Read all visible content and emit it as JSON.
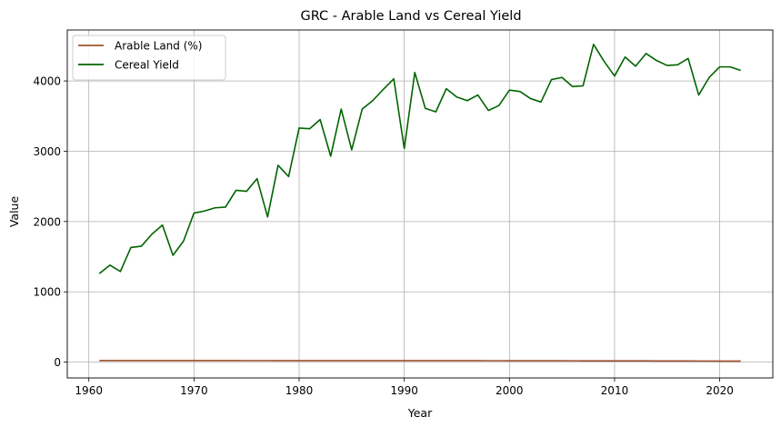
{
  "chart_data": {
    "type": "line",
    "title": "GRC - Arable Land vs Cereal Yield",
    "xlabel": "Year",
    "ylabel": "Value",
    "xlim": [
      1957.95,
      2025.05
    ],
    "ylim": [
      -225,
      4725
    ],
    "xticks": [
      1960,
      1970,
      1980,
      1990,
      2000,
      2010,
      2020
    ],
    "yticks": [
      0,
      1000,
      2000,
      3000,
      4000
    ],
    "grid": true,
    "legend_position": "top-left",
    "x": [
      1961,
      1962,
      1963,
      1964,
      1965,
      1966,
      1967,
      1968,
      1969,
      1970,
      1971,
      1972,
      1973,
      1974,
      1975,
      1976,
      1977,
      1978,
      1979,
      1980,
      1981,
      1982,
      1983,
      1984,
      1985,
      1986,
      1987,
      1988,
      1989,
      1990,
      1991,
      1992,
      1993,
      1994,
      1995,
      1996,
      1997,
      1998,
      1999,
      2000,
      2001,
      2002,
      2003,
      2004,
      2005,
      2006,
      2007,
      2008,
      2009,
      2010,
      2011,
      2012,
      2013,
      2014,
      2015,
      2016,
      2017,
      2018,
      2019,
      2020,
      2021,
      2022
    ],
    "series": [
      {
        "name": "Arable Land (%)",
        "color": "#a0522d",
        "values": [
          22.5,
          22.6,
          22.7,
          22.8,
          22.8,
          22.9,
          22.9,
          22.9,
          22.9,
          22.9,
          22.8,
          22.7,
          22.6,
          22.4,
          22.3,
          22.2,
          22.1,
          22.0,
          22.0,
          22.0,
          22.0,
          21.9,
          21.8,
          21.8,
          21.8,
          21.7,
          21.7,
          21.6,
          21.6,
          21.5,
          21.4,
          21.3,
          21.3,
          21.2,
          21.1,
          21.0,
          20.9,
          20.7,
          20.4,
          20.2,
          20.0,
          19.8,
          19.6,
          19.4,
          19.2,
          19.0,
          18.8,
          18.7,
          18.6,
          18.5,
          18.4,
          18.2,
          17.8,
          17.0,
          16.5,
          16.2,
          16.0,
          15.8,
          15.6,
          15.4,
          15.2,
          15.0
        ]
      },
      {
        "name": "Cereal Yield",
        "color": "#006400",
        "values": [
          1260,
          1380,
          1290,
          1630,
          1650,
          1820,
          1950,
          1520,
          1720,
          2120,
          2150,
          2195,
          2205,
          2445,
          2430,
          2610,
          2065,
          2800,
          2640,
          3330,
          3320,
          3450,
          2930,
          3600,
          3020,
          3600,
          3720,
          3880,
          4030,
          3040,
          4120,
          3610,
          3560,
          3890,
          3770,
          3720,
          3800,
          3580,
          3650,
          3870,
          3850,
          3750,
          3700,
          4020,
          4050,
          3920,
          3930,
          4520,
          4280,
          4070,
          4340,
          4210,
          4390,
          4290,
          4220,
          4230,
          4320,
          3800,
          4050,
          4200,
          4200,
          4150
        ]
      }
    ]
  }
}
